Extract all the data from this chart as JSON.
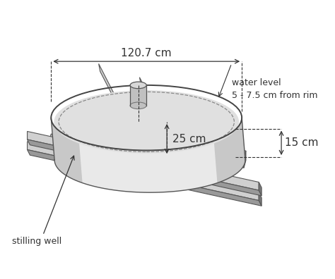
{
  "bg_color": "#ffffff",
  "line_color": "#333333",
  "annotation_120_7": "120.7 cm",
  "annotation_25": "25 cm",
  "annotation_15": "15 cm",
  "annotation_water": "water level\n5 - 7.5 cm from rim",
  "annotation_stilling": "stilling well",
  "font_size_large": 11,
  "font_size_small": 9,
  "figure_width": 4.74,
  "figure_height": 3.96,
  "dpi": 100
}
